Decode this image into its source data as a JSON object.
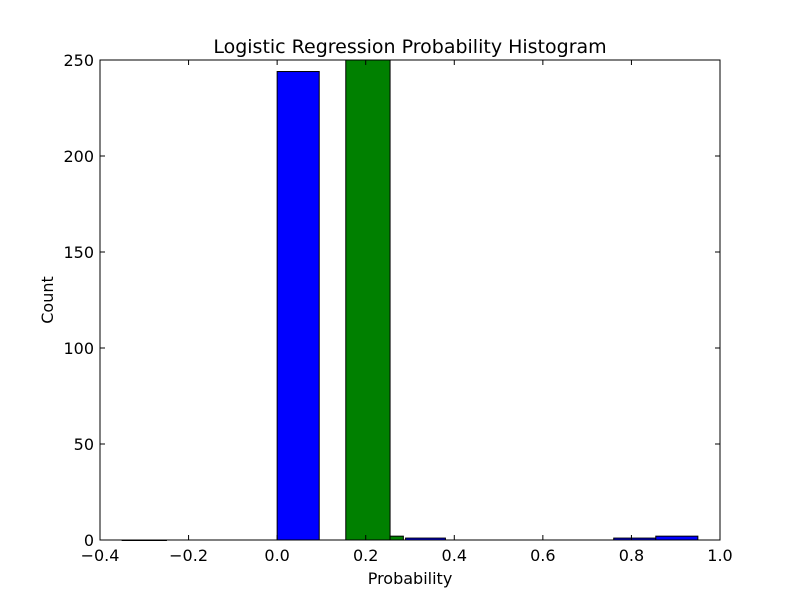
{
  "chart_data": {
    "type": "bar",
    "title": "Logistic Regression Probability Histogram",
    "xlabel": "Probability",
    "ylabel": "Count",
    "xlim": [
      -0.4,
      1.0
    ],
    "ylim": [
      0,
      250
    ],
    "xticks": [
      "−0.4",
      "−0.2",
      "0.0",
      "0.2",
      "0.4",
      "0.6",
      "0.8",
      "1.0"
    ],
    "yticks": [
      "0",
      "50",
      "100",
      "150",
      "200",
      "250"
    ],
    "grid": false,
    "series": [
      {
        "color": "#0000ff",
        "bars": [
          {
            "x0": -0.35,
            "x1": -0.25,
            "value": 0
          },
          {
            "x0": 0.0,
            "x1": 0.095,
            "value": 244
          },
          {
            "x0": 0.29,
            "x1": 0.38,
            "value": 1
          },
          {
            "x0": 0.76,
            "x1": 0.855,
            "value": 1
          },
          {
            "x0": 0.855,
            "x1": 0.95,
            "value": 2
          }
        ]
      },
      {
        "color": "#008000",
        "bars": [
          {
            "x0": 0.155,
            "x1": 0.255,
            "value": 250
          },
          {
            "x0": 0.255,
            "x1": 0.285,
            "value": 2
          }
        ]
      }
    ]
  }
}
